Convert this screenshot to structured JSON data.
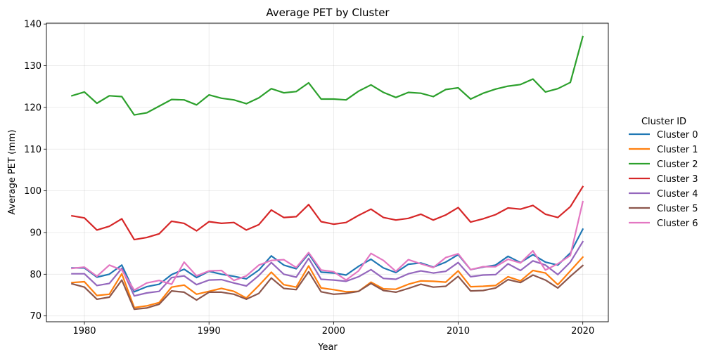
{
  "chart_data": {
    "type": "line",
    "title": "Average PET by Cluster",
    "xlabel": "Year",
    "ylabel": "Average PET (mm)",
    "xlim": [
      1976.95,
      2022.05
    ],
    "ylim": [
      68.6,
      140.2
    ],
    "xticks": [
      1980,
      1990,
      2000,
      2010,
      2020
    ],
    "yticks": [
      70,
      80,
      90,
      100,
      110,
      120,
      130,
      140
    ],
    "grid": true,
    "legend": {
      "title": "Cluster ID",
      "position": "right"
    },
    "x": [
      1979,
      1980,
      1981,
      1982,
      1983,
      1984,
      1985,
      1986,
      1987,
      1988,
      1989,
      1990,
      1991,
      1992,
      1993,
      1994,
      1995,
      1996,
      1997,
      1998,
      1999,
      2000,
      2001,
      2002,
      2003,
      2004,
      2005,
      2006,
      2007,
      2008,
      2009,
      2010,
      2011,
      2012,
      2013,
      2014,
      2015,
      2016,
      2017,
      2018,
      2019,
      2020
    ],
    "series": [
      {
        "name": "Cluster 0",
        "color": "#1f77b4",
        "values": [
          81.5,
          81.5,
          79.3,
          80.0,
          82.2,
          75.8,
          77.0,
          77.6,
          79.9,
          81.2,
          79.2,
          80.7,
          80.0,
          79.5,
          78.9,
          81.0,
          84.4,
          82.2,
          81.3,
          84.9,
          80.5,
          80.3,
          79.8,
          81.9,
          83.6,
          81.5,
          80.4,
          82.4,
          82.7,
          81.7,
          82.9,
          84.7,
          81.1,
          81.7,
          82.2,
          84.3,
          82.8,
          84.7,
          82.9,
          82.2,
          85.1,
          90.8
        ]
      },
      {
        "name": "Cluster 1",
        "color": "#ff7f0e",
        "values": [
          78.0,
          78.2,
          74.9,
          75.2,
          80.1,
          72.0,
          72.4,
          73.2,
          76.9,
          77.4,
          75.2,
          75.9,
          76.6,
          75.9,
          74.3,
          77.3,
          80.5,
          77.5,
          76.9,
          82.0,
          76.7,
          76.3,
          75.8,
          75.9,
          78.1,
          76.5,
          76.4,
          77.6,
          78.4,
          78.3,
          78.1,
          80.8,
          77.0,
          77.1,
          77.3,
          79.4,
          78.4,
          80.9,
          80.3,
          77.5,
          80.8,
          84.1
        ]
      },
      {
        "name": "Cluster 2",
        "color": "#2ca02c",
        "values": [
          122.8,
          123.7,
          121.0,
          122.8,
          122.6,
          118.2,
          118.7,
          120.3,
          121.9,
          121.8,
          120.6,
          123.0,
          122.2,
          121.8,
          120.9,
          122.3,
          124.5,
          123.5,
          123.8,
          125.9,
          122.0,
          122.0,
          121.8,
          123.9,
          125.4,
          123.6,
          122.4,
          123.6,
          123.4,
          122.6,
          124.3,
          124.7,
          122.0,
          123.4,
          124.4,
          125.1,
          125.5,
          126.8,
          123.7,
          124.5,
          126.0,
          137.0
        ]
      },
      {
        "name": "Cluster 3",
        "color": "#d62728",
        "values": [
          94.0,
          93.5,
          90.6,
          91.5,
          93.3,
          88.3,
          88.8,
          89.7,
          92.7,
          92.2,
          90.4,
          92.6,
          92.2,
          92.4,
          90.6,
          91.9,
          95.4,
          93.6,
          93.8,
          96.7,
          92.6,
          92.0,
          92.4,
          94.1,
          95.6,
          93.6,
          93.0,
          93.4,
          94.4,
          93.0,
          94.2,
          96.0,
          92.5,
          93.3,
          94.3,
          95.9,
          95.6,
          96.5,
          94.4,
          93.6,
          96.2,
          101.0
        ]
      },
      {
        "name": "Cluster 4",
        "color": "#9467bd",
        "values": [
          80.1,
          80.1,
          77.3,
          77.8,
          81.4,
          74.8,
          75.5,
          75.9,
          79.2,
          79.6,
          77.5,
          78.6,
          78.7,
          77.9,
          77.2,
          79.7,
          82.8,
          80.0,
          79.3,
          83.8,
          78.8,
          78.6,
          78.3,
          79.4,
          81.1,
          79.0,
          78.8,
          80.1,
          80.8,
          80.3,
          80.7,
          82.8,
          79.4,
          79.8,
          79.9,
          82.5,
          80.9,
          83.2,
          82.2,
          79.9,
          82.9,
          87.8
        ]
      },
      {
        "name": "Cluster 5",
        "color": "#8c564b",
        "values": [
          77.7,
          76.9,
          74.0,
          74.5,
          78.6,
          71.6,
          71.9,
          72.8,
          76.0,
          75.7,
          73.8,
          75.7,
          75.7,
          75.2,
          74.0,
          75.4,
          79.1,
          76.6,
          76.3,
          80.6,
          75.8,
          75.2,
          75.4,
          75.9,
          77.8,
          76.1,
          75.7,
          76.6,
          77.6,
          76.9,
          77.1,
          79.5,
          76.0,
          76.1,
          76.7,
          78.7,
          78.0,
          79.8,
          78.6,
          76.7,
          79.5,
          82.1
        ]
      },
      {
        "name": "Cluster 6",
        "color": "#e377c2",
        "values": [
          81.4,
          81.7,
          79.5,
          82.2,
          81.0,
          76.2,
          77.9,
          78.5,
          77.6,
          82.9,
          79.6,
          80.8,
          80.9,
          78.5,
          79.6,
          82.2,
          83.3,
          83.5,
          81.6,
          85.2,
          81.0,
          80.6,
          78.6,
          80.8,
          85.0,
          83.3,
          80.7,
          83.5,
          82.5,
          81.6,
          84.0,
          84.9,
          81.1,
          81.8,
          81.8,
          83.6,
          82.7,
          85.6,
          81.0,
          82.5,
          84.5,
          97.4
        ]
      }
    ]
  }
}
